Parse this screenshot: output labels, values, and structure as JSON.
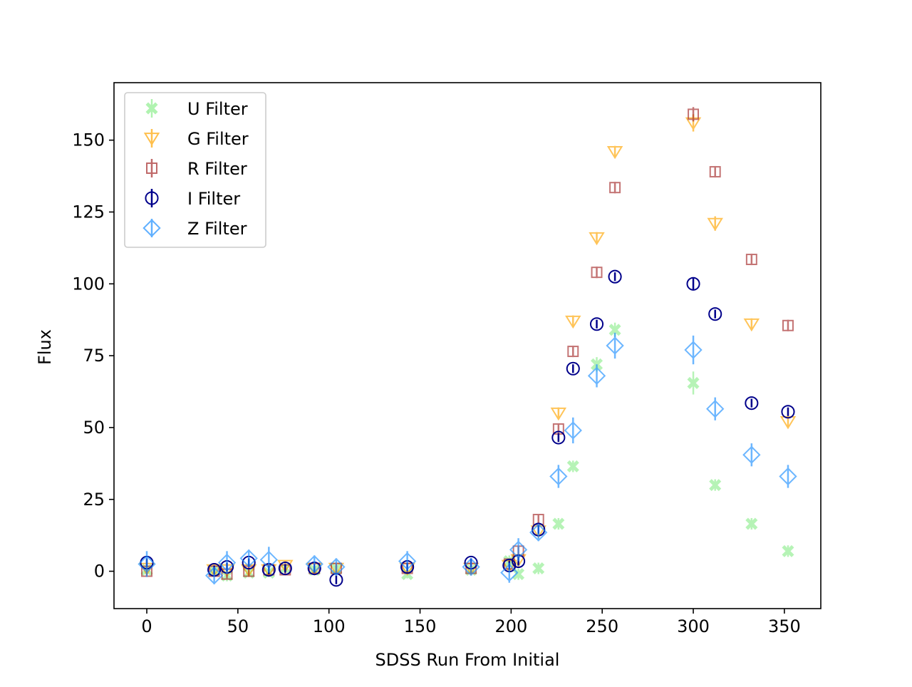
{
  "chart_data": {
    "type": "scatter",
    "title": "",
    "xlabel": "SDSS Run From Initial",
    "ylabel": "Flux",
    "xlim": [
      -18,
      370
    ],
    "ylim": [
      -13,
      170
    ],
    "xticks": [
      0,
      50,
      100,
      150,
      200,
      250,
      300,
      350
    ],
    "yticks": [
      0,
      25,
      50,
      75,
      100,
      125,
      150
    ],
    "grid": false,
    "legend_position": "top-left",
    "series": [
      {
        "name": "U Filter",
        "marker": "thick-x",
        "color": "#90ee90",
        "points": [
          {
            "x": 0,
            "y": 0.5,
            "err": 1.5
          },
          {
            "x": 37,
            "y": 0.2,
            "err": 1.5
          },
          {
            "x": 44,
            "y": -1.5,
            "err": 2
          },
          {
            "x": 56,
            "y": -0.5,
            "err": 1.5
          },
          {
            "x": 67,
            "y": -0.5,
            "err": 1.5
          },
          {
            "x": 76,
            "y": 1.0,
            "err": 1.5
          },
          {
            "x": 92,
            "y": 0.5,
            "err": 1.5
          },
          {
            "x": 104,
            "y": 0.8,
            "err": 1.5
          },
          {
            "x": 143,
            "y": -1.0,
            "err": 1.5
          },
          {
            "x": 178,
            "y": 0.5,
            "err": 1.5
          },
          {
            "x": 199,
            "y": 3.5,
            "err": 2
          },
          {
            "x": 204,
            "y": -1.0,
            "err": 2
          },
          {
            "x": 215,
            "y": 1.0,
            "err": 2
          },
          {
            "x": 226,
            "y": 16.5,
            "err": 2
          },
          {
            "x": 234,
            "y": 36.5,
            "err": 2
          },
          {
            "x": 247,
            "y": 72.0,
            "err": 2.5
          },
          {
            "x": 257,
            "y": 84.0,
            "err": 2.5
          },
          {
            "x": 300,
            "y": 65.5,
            "err": 4
          },
          {
            "x": 312,
            "y": 30.0,
            "err": 2
          },
          {
            "x": 332,
            "y": 16.5,
            "err": 2
          },
          {
            "x": 352,
            "y": 7.0,
            "err": 2
          }
        ]
      },
      {
        "name": "G Filter",
        "marker": "triangle-down",
        "color": "#ffa500",
        "points": [
          {
            "x": 0,
            "y": 1.0,
            "err": 1.5
          },
          {
            "x": 37,
            "y": 0.5,
            "err": 1.5
          },
          {
            "x": 44,
            "y": 0.5,
            "err": 1.5
          },
          {
            "x": 56,
            "y": 0.5,
            "err": 1.5
          },
          {
            "x": 67,
            "y": 0.5,
            "err": 1.5
          },
          {
            "x": 76,
            "y": 2.0,
            "err": 1.5
          },
          {
            "x": 92,
            "y": 1.0,
            "err": 1.5
          },
          {
            "x": 104,
            "y": 1.0,
            "err": 1.5
          },
          {
            "x": 143,
            "y": 1.0,
            "err": 1.5
          },
          {
            "x": 178,
            "y": 1.0,
            "err": 1.5
          },
          {
            "x": 199,
            "y": 2.0,
            "err": 1.5
          },
          {
            "x": 204,
            "y": 4.0,
            "err": 1.5
          },
          {
            "x": 215,
            "y": 14.0,
            "err": 1.5
          },
          {
            "x": 226,
            "y": 55.0,
            "err": 2
          },
          {
            "x": 234,
            "y": 87.0,
            "err": 2
          },
          {
            "x": 247,
            "y": 116.0,
            "err": 2
          },
          {
            "x": 257,
            "y": 146.0,
            "err": 2
          },
          {
            "x": 300,
            "y": 156.0,
            "err": 3
          },
          {
            "x": 312,
            "y": 121.0,
            "err": 2.5
          },
          {
            "x": 332,
            "y": 86.0,
            "err": 2
          },
          {
            "x": 352,
            "y": 52.0,
            "err": 2
          }
        ]
      },
      {
        "name": "R Filter",
        "marker": "square",
        "color": "#a52a2a",
        "points": [
          {
            "x": 0,
            "y": 0.0,
            "err": 1.5
          },
          {
            "x": 37,
            "y": 0.0,
            "err": 1.5
          },
          {
            "x": 44,
            "y": -1.0,
            "err": 1.5
          },
          {
            "x": 56,
            "y": 0.0,
            "err": 1.5
          },
          {
            "x": 67,
            "y": 0.5,
            "err": 1.5
          },
          {
            "x": 76,
            "y": 0.5,
            "err": 1.5
          },
          {
            "x": 92,
            "y": 1.0,
            "err": 1.5
          },
          {
            "x": 104,
            "y": 1.0,
            "err": 1.5
          },
          {
            "x": 143,
            "y": 1.0,
            "err": 1.5
          },
          {
            "x": 178,
            "y": 1.0,
            "err": 1.5
          },
          {
            "x": 199,
            "y": 2.5,
            "err": 1.5
          },
          {
            "x": 204,
            "y": 7.0,
            "err": 1.5
          },
          {
            "x": 215,
            "y": 18.0,
            "err": 1.5
          },
          {
            "x": 226,
            "y": 49.5,
            "err": 2
          },
          {
            "x": 234,
            "y": 76.5,
            "err": 2
          },
          {
            "x": 247,
            "y": 104.0,
            "err": 2
          },
          {
            "x": 257,
            "y": 133.5,
            "err": 2
          },
          {
            "x": 300,
            "y": 159.0,
            "err": 2.5
          },
          {
            "x": 312,
            "y": 139.0,
            "err": 2
          },
          {
            "x": 332,
            "y": 108.5,
            "err": 2
          },
          {
            "x": 352,
            "y": 85.5,
            "err": 2
          }
        ]
      },
      {
        "name": "I Filter",
        "marker": "circle",
        "color": "#00008b",
        "points": [
          {
            "x": 0,
            "y": 3.0,
            "err": 1.5
          },
          {
            "x": 37,
            "y": 0.5,
            "err": 1.5
          },
          {
            "x": 44,
            "y": 1.5,
            "err": 1.5
          },
          {
            "x": 56,
            "y": 3.0,
            "err": 1.5
          },
          {
            "x": 67,
            "y": 0.5,
            "err": 1.5
          },
          {
            "x": 76,
            "y": 1.0,
            "err": 1.5
          },
          {
            "x": 92,
            "y": 1.0,
            "err": 1.5
          },
          {
            "x": 104,
            "y": -3.0,
            "err": 1.5
          },
          {
            "x": 143,
            "y": 1.5,
            "err": 1.5
          },
          {
            "x": 178,
            "y": 3.0,
            "err": 1.5
          },
          {
            "x": 199,
            "y": 2.0,
            "err": 1.5
          },
          {
            "x": 204,
            "y": 3.5,
            "err": 1.5
          },
          {
            "x": 215,
            "y": 14.5,
            "err": 1.5
          },
          {
            "x": 226,
            "y": 46.5,
            "err": 1.5
          },
          {
            "x": 234,
            "y": 70.5,
            "err": 1.5
          },
          {
            "x": 247,
            "y": 86.0,
            "err": 1.5
          },
          {
            "x": 257,
            "y": 102.5,
            "err": 1.5
          },
          {
            "x": 300,
            "y": 100.0,
            "err": 2
          },
          {
            "x": 312,
            "y": 89.5,
            "err": 1.5
          },
          {
            "x": 332,
            "y": 58.5,
            "err": 1.5
          },
          {
            "x": 352,
            "y": 55.5,
            "err": 1.5
          }
        ]
      },
      {
        "name": "Z Filter",
        "marker": "diamond",
        "color": "#1e90ff",
        "points": [
          {
            "x": 0,
            "y": 2.5,
            "err": 4.5
          },
          {
            "x": 37,
            "y": -1.5,
            "err": 3
          },
          {
            "x": 44,
            "y": 3.0,
            "err": 4
          },
          {
            "x": 56,
            "y": 4.5,
            "err": 3
          },
          {
            "x": 67,
            "y": 4.0,
            "err": 4.5
          },
          {
            "x": 92,
            "y": 2.5,
            "err": 3
          },
          {
            "x": 104,
            "y": 1.5,
            "err": 3
          },
          {
            "x": 143,
            "y": 3.5,
            "err": 3.5
          },
          {
            "x": 178,
            "y": 1.5,
            "err": 3
          },
          {
            "x": 199,
            "y": -0.5,
            "err": 3.5
          },
          {
            "x": 204,
            "y": 7.5,
            "err": 4
          },
          {
            "x": 215,
            "y": 13.5,
            "err": 3
          },
          {
            "x": 226,
            "y": 33.0,
            "err": 4
          },
          {
            "x": 234,
            "y": 49.0,
            "err": 4.5
          },
          {
            "x": 247,
            "y": 68.0,
            "err": 4
          },
          {
            "x": 257,
            "y": 78.5,
            "err": 4.5
          },
          {
            "x": 300,
            "y": 77.0,
            "err": 5
          },
          {
            "x": 312,
            "y": 56.5,
            "err": 4
          },
          {
            "x": 332,
            "y": 40.5,
            "err": 4
          },
          {
            "x": 352,
            "y": 33.0,
            "err": 4
          }
        ]
      }
    ]
  }
}
